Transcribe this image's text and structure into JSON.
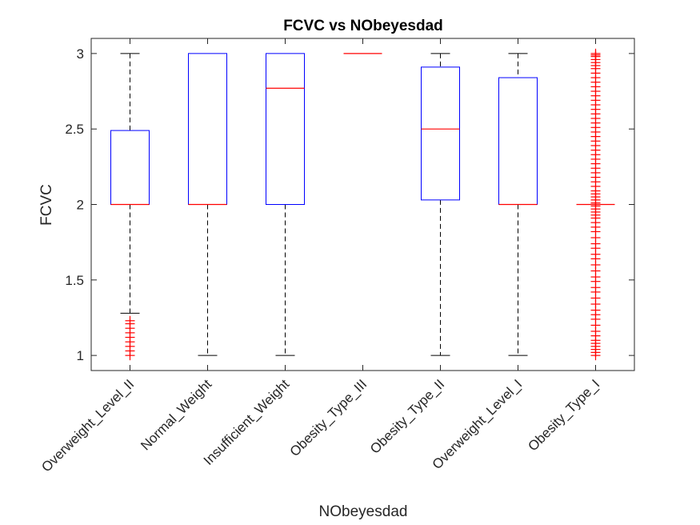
{
  "chart_data": {
    "type": "boxplot",
    "title": "FCVC vs NObeyesdad",
    "xlabel": "NObeyesdad",
    "ylabel": "FCVC",
    "ylim": [
      0.9,
      3.1
    ],
    "yticks": [
      1,
      1.5,
      2,
      2.5,
      3
    ],
    "ytick_labels": [
      "1",
      "1.5",
      "2",
      "2.5",
      "3"
    ],
    "categories": [
      "Overweight_Level_II",
      "Normal_Weight",
      "Insufficient_Weight",
      "Obesity_Type_III",
      "Obesity_Type_II",
      "Overweight_Level_I",
      "Obesity_Type_I"
    ],
    "boxes": [
      {
        "category": "Overweight_Level_II",
        "whisker_low": 1.28,
        "q1": 2.0,
        "median": 2.0,
        "q3": 2.49,
        "whisker_high": 3.0,
        "outliers": [
          1.0,
          1.03,
          1.06,
          1.09,
          1.12,
          1.15,
          1.18,
          1.21,
          1.23
        ]
      },
      {
        "category": "Normal_Weight",
        "whisker_low": 1.0,
        "q1": 2.0,
        "median": 2.0,
        "q3": 3.0,
        "whisker_high": 3.0,
        "outliers": []
      },
      {
        "category": "Insufficient_Weight",
        "whisker_low": 1.0,
        "q1": 2.0,
        "median": 2.77,
        "q3": 3.0,
        "whisker_high": 3.0,
        "outliers": []
      },
      {
        "category": "Obesity_Type_III",
        "whisker_low": 3.0,
        "q1": 3.0,
        "median": 3.0,
        "q3": 3.0,
        "whisker_high": 3.0,
        "outliers": []
      },
      {
        "category": "Obesity_Type_II",
        "whisker_low": 1.0,
        "q1": 2.03,
        "median": 2.5,
        "q3": 2.91,
        "whisker_high": 3.0,
        "outliers": []
      },
      {
        "category": "Overweight_Level_I",
        "whisker_low": 1.0,
        "q1": 2.0,
        "median": 2.0,
        "q3": 2.84,
        "whisker_high": 3.0,
        "outliers": []
      },
      {
        "category": "Obesity_Type_I",
        "whisker_low": 2.0,
        "q1": 2.0,
        "median": 2.0,
        "q3": 2.0,
        "whisker_high": 2.0,
        "outliers": [
          1.0,
          1.02,
          1.04,
          1.06,
          1.08,
          1.1,
          1.13,
          1.16,
          1.2,
          1.24,
          1.27,
          1.3,
          1.34,
          1.38,
          1.42,
          1.45,
          1.49,
          1.52,
          1.56,
          1.6,
          1.64,
          1.67,
          1.71,
          1.74,
          1.78,
          1.82,
          1.85,
          1.88,
          1.91,
          1.93,
          1.95,
          1.97,
          1.99,
          2.01,
          2.03,
          2.05,
          2.07,
          2.09,
          2.12,
          2.15,
          2.18,
          2.21,
          2.24,
          2.27,
          2.3,
          2.33,
          2.36,
          2.39,
          2.42,
          2.45,
          2.48,
          2.51,
          2.54,
          2.57,
          2.6,
          2.63,
          2.66,
          2.69,
          2.72,
          2.75,
          2.78,
          2.81,
          2.84,
          2.87,
          2.9,
          2.92,
          2.94,
          2.96,
          2.98,
          2.99,
          3.0
        ]
      }
    ],
    "colors": {
      "box": "#0000ff",
      "median": "#ff0000",
      "whisker": "#000000",
      "outlier": "#ff0000",
      "axis": "#262626"
    }
  }
}
